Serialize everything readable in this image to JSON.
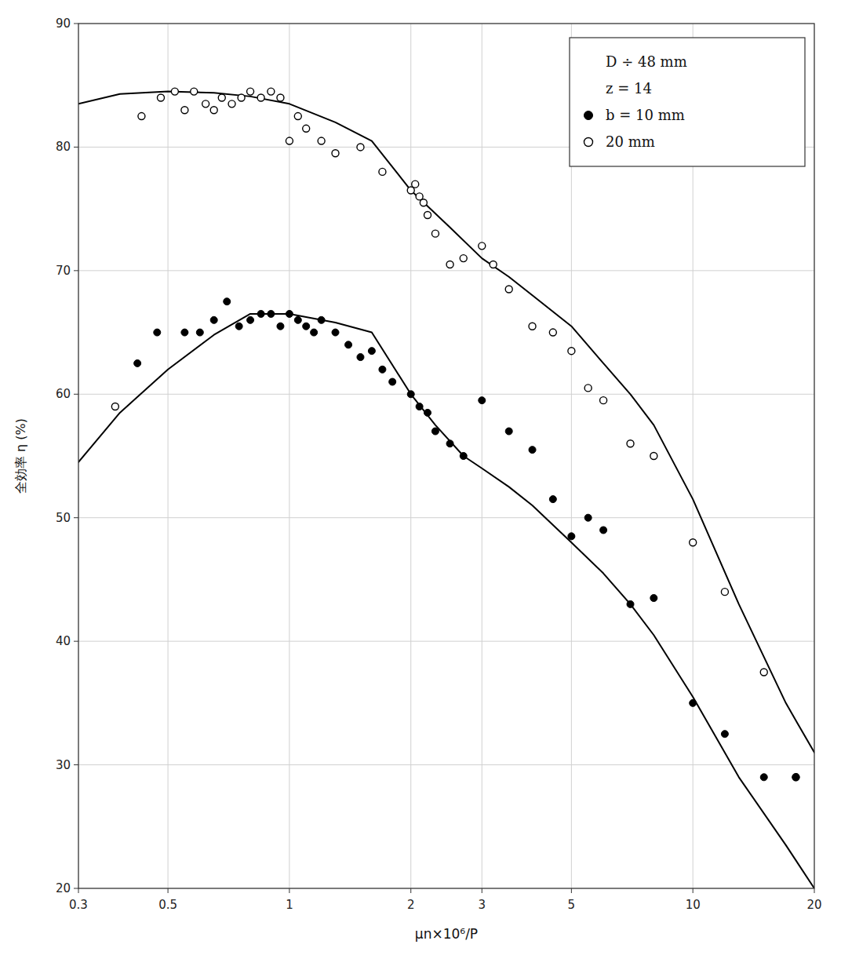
{
  "chart_data": {
    "type": "line",
    "x_label": "μn×10⁶/P",
    "y_label": "全効率 η (%)",
    "log": "x",
    "grid": true,
    "legend": "upper right",
    "xlim": [
      0.3,
      20
    ],
    "ylim": [
      20,
      90
    ],
    "xticks": [
      0.3,
      0.5,
      1,
      2,
      3,
      5,
      10,
      20
    ],
    "yticks": [
      20,
      30,
      40,
      50,
      60,
      70,
      80,
      90
    ],
    "annotations": [
      "D ÷ 48 mm",
      "z = 14"
    ],
    "series": [
      {
        "type": "line",
        "color": "black",
        "marker": "none",
        "line_style": "solid",
        "x": [
          0.3,
          0.38,
          0.5,
          0.65,
          0.8,
          1.0,
          1.3,
          1.6,
          2.0,
          2.5,
          3.0,
          3.5,
          4.0,
          5.0,
          6.0,
          7.0,
          8.0,
          10.0,
          13.0,
          17.0,
          20.0
        ],
        "values": [
          83.5,
          84.3,
          84.5,
          84.4,
          84.1,
          83.5,
          82.0,
          80.5,
          76.5,
          73.5,
          71.0,
          69.5,
          68.0,
          65.5,
          62.5,
          60.0,
          57.5,
          51.5,
          43.0,
          35.0,
          31.0
        ]
      },
      {
        "type": "line",
        "color": "black",
        "marker": "none",
        "line_style": "solid",
        "x": [
          0.3,
          0.38,
          0.5,
          0.65,
          0.8,
          1.0,
          1.3,
          1.6,
          2.0,
          2.3,
          2.7,
          3.0,
          3.5,
          4.0,
          5.0,
          6.0,
          7.0,
          8.0,
          10.0,
          13.0,
          17.0,
          20.0
        ],
        "values": [
          54.5,
          58.5,
          62.0,
          64.8,
          66.5,
          66.5,
          65.8,
          65.0,
          60.0,
          57.5,
          55.0,
          54.0,
          52.5,
          51.0,
          48.0,
          45.5,
          43.0,
          40.5,
          35.5,
          29.0,
          23.5,
          20.0
        ]
      },
      {
        "type": "scatter",
        "name": "20 mm",
        "color": "black",
        "marker": "open",
        "x": [
          0.37,
          0.43,
          0.48,
          0.52,
          0.55,
          0.58,
          0.62,
          0.65,
          0.68,
          0.72,
          0.76,
          0.8,
          0.85,
          0.9,
          0.95,
          1.0,
          1.05,
          1.1,
          1.2,
          1.3,
          1.5,
          1.7,
          2.0,
          2.05,
          2.1,
          2.15,
          2.2,
          2.3,
          2.5,
          2.7,
          3.0,
          3.2,
          3.5,
          4.0,
          4.5,
          5.0,
          5.5,
          6.0,
          7.0,
          8.0,
          10.0,
          12.0,
          15.0,
          18.0
        ],
        "values": [
          59.0,
          82.5,
          84.0,
          84.5,
          83.0,
          84.5,
          83.5,
          83.0,
          84.0,
          83.5,
          84.0,
          84.5,
          84.0,
          84.5,
          84.0,
          80.5,
          82.5,
          81.5,
          80.5,
          79.5,
          80.0,
          78.0,
          76.5,
          77.0,
          76.0,
          75.5,
          74.5,
          73.0,
          70.5,
          71.0,
          72.0,
          70.5,
          68.5,
          65.5,
          65.0,
          63.5,
          60.5,
          59.5,
          56.0,
          55.0,
          48.0,
          44.0,
          37.5,
          29.0
        ]
      },
      {
        "type": "scatter",
        "name": "b = 10 mm",
        "color": "black",
        "marker": "filled",
        "x": [
          0.42,
          0.47,
          0.55,
          0.6,
          0.65,
          0.7,
          0.75,
          0.8,
          0.85,
          0.9,
          0.95,
          1.0,
          1.05,
          1.1,
          1.15,
          1.2,
          1.3,
          1.4,
          1.5,
          1.6,
          1.7,
          1.8,
          2.0,
          2.1,
          2.2,
          2.3,
          2.5,
          2.7,
          3.0,
          3.5,
          4.0,
          4.5,
          5.0,
          5.5,
          6.0,
          7.0,
          8.0,
          10.0,
          12.0,
          15.0,
          18.0
        ],
        "values": [
          62.5,
          65.0,
          65.0,
          65.0,
          66.0,
          67.5,
          65.5,
          66.0,
          66.5,
          66.5,
          65.5,
          66.5,
          66.0,
          65.5,
          65.0,
          66.0,
          65.0,
          64.0,
          63.0,
          63.5,
          62.0,
          61.0,
          60.0,
          59.0,
          58.5,
          57.0,
          56.0,
          55.0,
          59.5,
          57.0,
          55.5,
          51.5,
          48.5,
          50.0,
          49.0,
          43.0,
          43.5,
          35.0,
          32.5,
          29.0,
          29.0
        ]
      }
    ]
  }
}
